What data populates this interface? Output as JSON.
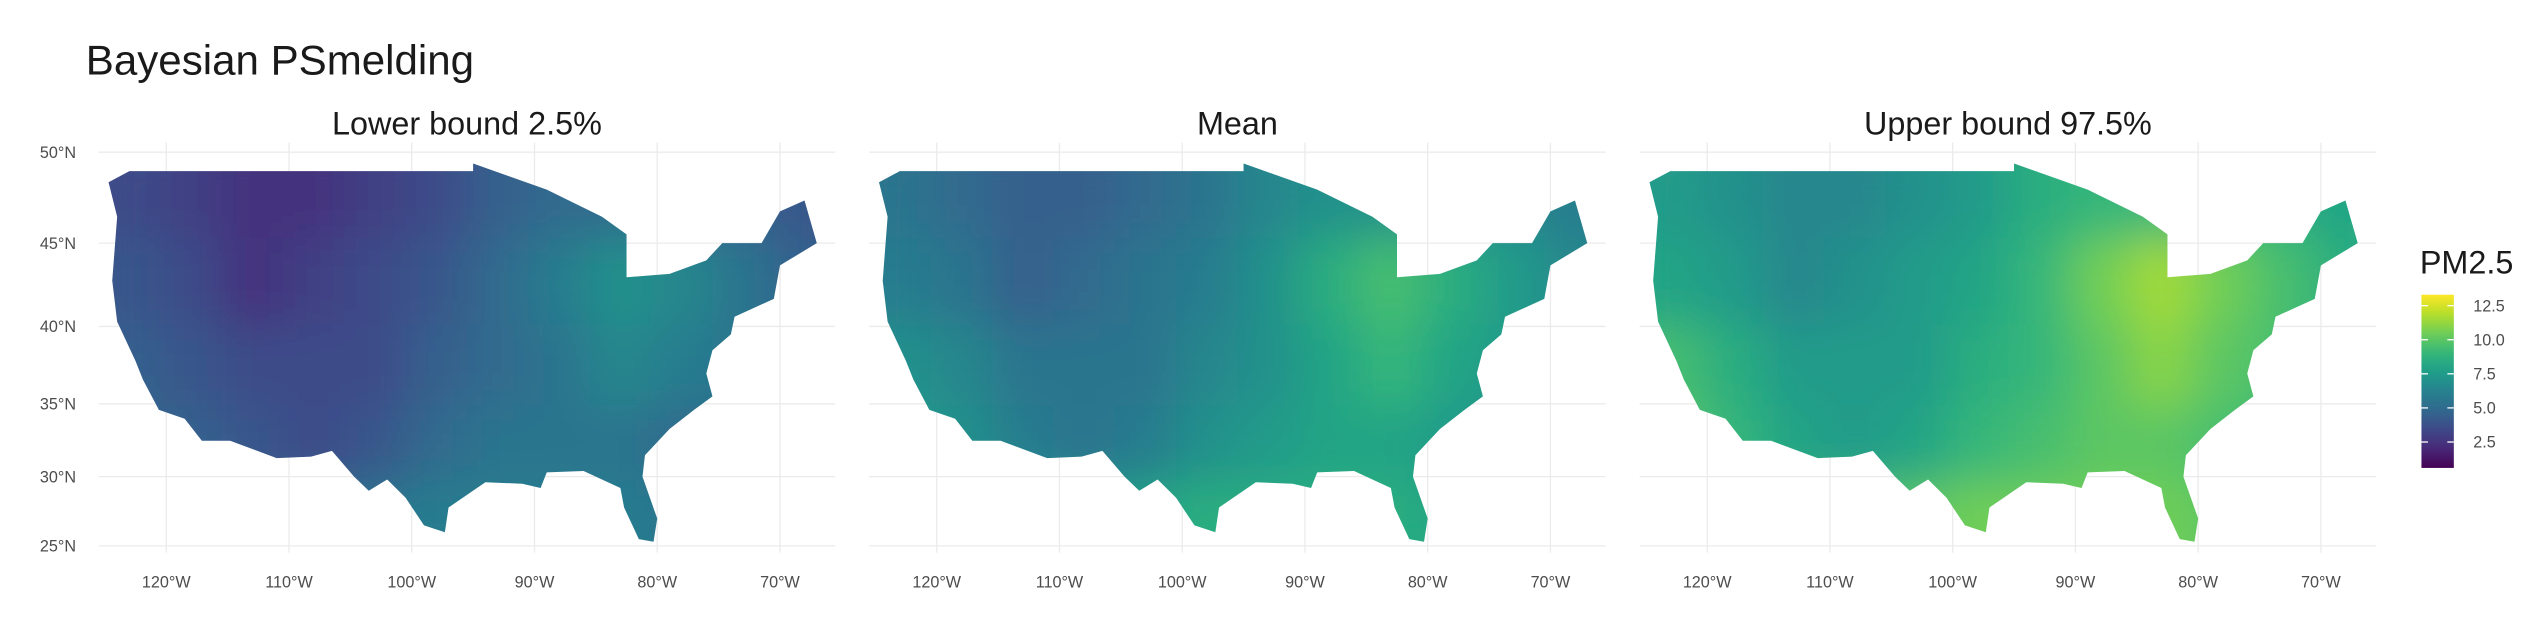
{
  "title": "Bayesian PSmelding",
  "x_axis": {
    "xlim": [
      -125.5,
      -65.5
    ],
    "xticks": [
      {
        "value": -120,
        "label": "120°W"
      },
      {
        "value": -110,
        "label": "110°W"
      },
      {
        "value": -100,
        "label": "100°W"
      },
      {
        "value": -90,
        "label": "90°W"
      },
      {
        "value": -80,
        "label": "80°W"
      },
      {
        "value": -70,
        "label": "70°W"
      }
    ]
  },
  "y_axis": {
    "ylim": [
      24.5,
      50.5
    ],
    "yticks": [
      {
        "value": 25,
        "label": "25°N"
      },
      {
        "value": 30,
        "label": "30°N"
      },
      {
        "value": 35,
        "label": "35°N"
      },
      {
        "value": 40,
        "label": "40°N"
      },
      {
        "value": 45,
        "label": "45°N"
      },
      {
        "value": 50,
        "label": "50°N"
      }
    ]
  },
  "panels": [
    {
      "title": "Lower bound 2.5%",
      "grid": [
        [
          3.5,
          3,
          2.5,
          2.5,
          3,
          3.5,
          4.5,
          5,
          5,
          5,
          4.5,
          4
        ],
        [
          4,
          3.5,
          2.5,
          3,
          3.5,
          4,
          5,
          6,
          7,
          6.5,
          5.5,
          4.5
        ],
        [
          4.5,
          4,
          3.5,
          3.5,
          3.5,
          4.5,
          5,
          5.5,
          6.5,
          6,
          5.5,
          5
        ],
        [
          5,
          4.5,
          4,
          3.5,
          4,
          5,
          5.5,
          5.5,
          5.5,
          5,
          5,
          5
        ],
        [
          5,
          5,
          5,
          5,
          5.5,
          6,
          6,
          6,
          6,
          5.5,
          5.5,
          5.5
        ]
      ]
    },
    {
      "title": "Mean",
      "grid": [
        [
          5.5,
          5,
          4.5,
          4.5,
          5,
          5.5,
          6.5,
          7,
          7,
          7,
          6.5,
          6
        ],
        [
          6,
          5.5,
          4.5,
          5,
          5.5,
          6,
          7,
          8.5,
          9.5,
          8.5,
          7.5,
          6.5
        ],
        [
          7,
          6.5,
          5.5,
          5.5,
          5.5,
          6.5,
          7,
          8,
          9,
          8,
          7.5,
          7
        ],
        [
          7.5,
          7,
          6,
          5.5,
          6,
          7,
          7.5,
          8,
          8,
          7.5,
          7,
          7
        ],
        [
          7.5,
          7.5,
          7.5,
          7.5,
          8,
          8.5,
          8.5,
          8.5,
          8.5,
          8,
          8,
          8
        ]
      ]
    },
    {
      "title": "Upper bound 97.5%",
      "grid": [
        [
          7.5,
          7,
          6.5,
          6.5,
          7,
          7.5,
          8.5,
          9,
          9,
          9,
          8.5,
          8
        ],
        [
          8,
          7.5,
          6.5,
          7,
          7.5,
          8,
          9,
          10.5,
          11.5,
          10.5,
          9.5,
          8.5
        ],
        [
          9.5,
          8.5,
          7.5,
          7.5,
          7.5,
          8.5,
          9,
          10,
          11,
          10,
          9.5,
          9
        ],
        [
          10,
          9,
          8,
          7.5,
          8,
          9,
          9.5,
          10,
          10,
          9.5,
          9,
          9
        ],
        [
          9.5,
          9.5,
          9.5,
          9.5,
          10,
          10.5,
          10.5,
          10.5,
          10.5,
          10,
          10,
          10
        ]
      ]
    }
  ],
  "legend": {
    "title": "PM2.5",
    "limits": [
      0.6,
      13.3
    ],
    "ticks": [
      2.5,
      {
        "value": 5,
        "label": "5.0"
      },
      7.5,
      {
        "value": 10,
        "label": "10.0"
      },
      12.5
    ]
  }
}
